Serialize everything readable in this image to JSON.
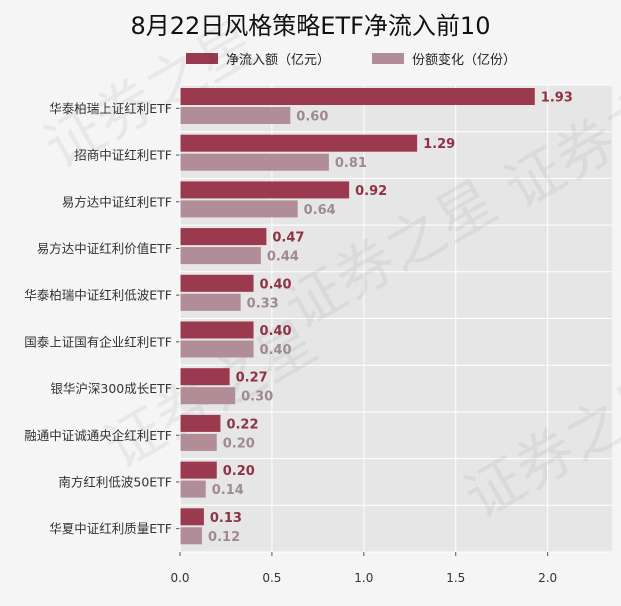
{
  "chart_data": {
    "type": "bar",
    "orientation": "horizontal",
    "title": "8月22日风格策略ETF净流入前10",
    "xlabel": "",
    "ylabel": "",
    "xlim": [
      0,
      2.35
    ],
    "x_ticks": [
      "0.0",
      "0.5",
      "1.0",
      "1.5",
      "2.0"
    ],
    "x_tick_values": [
      0,
      0.5,
      1.0,
      1.5,
      2.0
    ],
    "grid": true,
    "legend_position": "top",
    "categories": [
      "华泰柏瑞上证红利ETF",
      "招商中证红利ETF",
      "易方达中证红利ETF",
      "易方达中证红利价值ETF",
      "华泰柏瑞中证红利低波ETF",
      "国泰上证国有企业红利ETF",
      "银华沪深300成长ETF",
      "融通中证诚通央企红利ETF",
      "南方红利低波50ETF",
      "华夏中证红利质量ETF"
    ],
    "series": [
      {
        "name": "净流入额（亿元）",
        "color": "#9b3a4e",
        "label_color": "#8e3344",
        "values": [
          1.93,
          1.29,
          0.92,
          0.47,
          0.4,
          0.4,
          0.27,
          0.22,
          0.2,
          0.13
        ],
        "labels": [
          "1.93",
          "1.29",
          "0.92",
          "0.47",
          "0.40",
          "0.40",
          "0.27",
          "0.22",
          "0.20",
          "0.13"
        ]
      },
      {
        "name": "份额变化（亿份）",
        "color": "#b08d97",
        "label_color": "#a08a91",
        "values": [
          0.6,
          0.81,
          0.64,
          0.44,
          0.33,
          0.4,
          0.3,
          0.2,
          0.14,
          0.12
        ],
        "labels": [
          "0.60",
          "0.81",
          "0.64",
          "0.44",
          "0.33",
          "0.40",
          "0.30",
          "0.20",
          "0.14",
          "0.12"
        ]
      }
    ],
    "plot_background": "#e6e6e6",
    "watermark": "证券之星"
  }
}
